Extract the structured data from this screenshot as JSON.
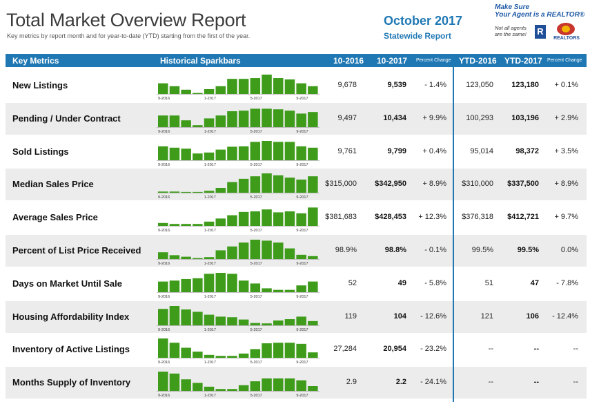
{
  "header": {
    "title": "Total Market Overview Report",
    "subtitle": "Key metrics by report month and for year-to-date (YTD) starting from the first of the year.",
    "month": "October 2017",
    "scope": "Statewide Report",
    "promo_line1": "Make Sure",
    "promo_line2": "Your Agent is a REALTOR®",
    "promo_line3": "Not all agents are the same!",
    "logo_r": "R",
    "seal_text": "REALTORS"
  },
  "columns": {
    "key_metrics": "Key Metrics",
    "sparkbars": "Historical Sparkbars",
    "col_2016": "10-2016",
    "col_2017": "10-2017",
    "pct_change": "Percent Change",
    "ytd_2016": "YTD-2016",
    "ytd_2017": "YTD-2017",
    "ytd_pct_change": "Percent Change"
  },
  "spark_ticks": [
    "9-2016",
    "1-2017",
    "5-2017",
    "9-2017"
  ],
  "colors": {
    "bar": "#3f9c1b",
    "accent": "#1f78b4",
    "shade": "#ececec"
  },
  "rows": [
    {
      "label": "New Listings",
      "v2016": "9,678",
      "v2017": "9,539",
      "pct": "- 1.4%",
      "ytd2016": "123,050",
      "ytd2017": "123,180",
      "ytd_pct": "+ 0.1%",
      "bars": [
        0.55,
        0.4,
        0.22,
        0.05,
        0.25,
        0.4,
        0.78,
        0.78,
        0.82,
        1.0,
        0.82,
        0.75,
        0.55,
        0.4
      ]
    },
    {
      "label": "Pending / Under Contract",
      "v2016": "9,497",
      "v2017": "10,434",
      "pct": "+ 9.9%",
      "ytd2016": "100,293",
      "ytd2017": "103,196",
      "ytd_pct": "+ 2.9%",
      "bars": [
        0.6,
        0.6,
        0.35,
        0.1,
        0.45,
        0.6,
        0.82,
        0.85,
        0.95,
        0.95,
        0.92,
        0.85,
        0.7,
        0.78
      ]
    },
    {
      "label": "Sold Listings",
      "v2016": "9,761",
      "v2017": "9,799",
      "pct": "+ 0.4%",
      "ytd2016": "95,014",
      "ytd2017": "98,372",
      "ytd_pct": "+ 3.5%",
      "bars": [
        0.72,
        0.65,
        0.6,
        0.35,
        0.4,
        0.55,
        0.7,
        0.72,
        0.95,
        1.0,
        0.95,
        0.95,
        0.72,
        0.65
      ]
    },
    {
      "label": "Median Sales Price",
      "v2016": "$315,000",
      "v2017": "$342,950",
      "pct": "+ 8.9%",
      "ytd2016": "$310,000",
      "ytd2017": "$337,500",
      "ytd_pct": "+ 8.9%",
      "bars": [
        0.06,
        0.06,
        0.04,
        0.04,
        0.1,
        0.25,
        0.55,
        0.72,
        0.85,
        1.0,
        0.9,
        0.78,
        0.68,
        0.85
      ]
    },
    {
      "label": "Average Sales Price",
      "v2016": "$381,683",
      "v2017": "$428,453",
      "pct": "+ 12.3%",
      "ytd2016": "$376,318",
      "ytd2017": "$412,721",
      "ytd_pct": "+ 9.7%",
      "bars": [
        0.15,
        0.1,
        0.1,
        0.1,
        0.22,
        0.38,
        0.55,
        0.72,
        0.75,
        0.85,
        0.7,
        0.75,
        0.65,
        0.95
      ]
    },
    {
      "label": "Percent of List Price Received",
      "v2016": "98.9%",
      "v2017": "98.8%",
      "pct": "- 0.1%",
      "ytd2016": "99.5%",
      "ytd2017": "99.5%",
      "ytd_pct": "0.0%",
      "bars": [
        0.35,
        0.2,
        0.12,
        0.05,
        0.1,
        0.45,
        0.65,
        0.85,
        1.0,
        0.95,
        0.85,
        0.55,
        0.22,
        0.15
      ]
    },
    {
      "label": "Days on Market Until Sale",
      "v2016": "52",
      "v2017": "49",
      "pct": "- 5.8%",
      "ytd2016": "51",
      "ytd2017": "47",
      "ytd_pct": "- 7.8%",
      "bars": [
        0.55,
        0.6,
        0.68,
        0.72,
        0.95,
        1.0,
        0.95,
        0.6,
        0.45,
        0.2,
        0.12,
        0.12,
        0.35,
        0.55
      ]
    },
    {
      "label": "Housing Affordability Index",
      "v2016": "119",
      "v2017": "104",
      "pct": "- 12.6%",
      "ytd2016": "121",
      "ytd2017": "106",
      "ytd_pct": "- 12.4%",
      "bars": [
        0.85,
        1.0,
        0.82,
        0.7,
        0.55,
        0.45,
        0.42,
        0.3,
        0.12,
        0.1,
        0.25,
        0.32,
        0.45,
        0.22
      ]
    },
    {
      "label": "Inventory of Active Listings",
      "v2016": "27,284",
      "v2017": "20,954",
      "pct": "- 23.2%",
      "ytd2016": "--",
      "ytd2017": "--",
      "ytd_pct": "--",
      "bars": [
        1.0,
        0.78,
        0.52,
        0.32,
        0.15,
        0.1,
        0.1,
        0.22,
        0.45,
        0.75,
        0.78,
        0.78,
        0.72,
        0.28
      ]
    },
    {
      "label": "Months Supply of Inventory",
      "v2016": "2.9",
      "v2017": "2.2",
      "pct": "- 24.1%",
      "ytd2016": "--",
      "ytd2017": "--",
      "ytd_pct": "--",
      "bars": [
        1.0,
        0.9,
        0.6,
        0.42,
        0.22,
        0.1,
        0.1,
        0.3,
        0.5,
        0.65,
        0.65,
        0.65,
        0.55,
        0.25
      ]
    }
  ]
}
